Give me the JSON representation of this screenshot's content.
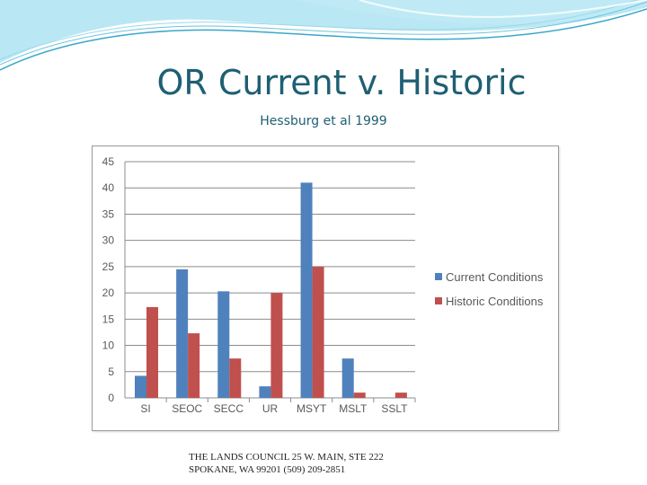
{
  "slide": {
    "title": "OR Current v. Historic",
    "subtitle": "Hessburg et al 1999",
    "footer_line1": "THE LANDS COUNCIL 25 W. MAIN, STE 222",
    "footer_line2": "SPOKANE, WA 99201 (509) 209-2851"
  },
  "colors": {
    "title": "#1f5f73",
    "current": "#4f81bd",
    "historic": "#c0504d",
    "wave": "#5bc0de"
  },
  "chart_data": {
    "type": "bar",
    "categories": [
      "SI",
      "SEOC",
      "SECC",
      "UR",
      "MSYT",
      "MSLT",
      "SSLT"
    ],
    "series": [
      {
        "name": "Current Conditions",
        "values": [
          4.2,
          24.5,
          20.3,
          2.2,
          41,
          7.5,
          0
        ]
      },
      {
        "name": "Historic Conditions",
        "values": [
          17.3,
          12.3,
          7.5,
          20,
          25,
          1,
          1
        ]
      }
    ],
    "yticks": [
      "0",
      "5",
      "10",
      "15",
      "20",
      "25",
      "30",
      "35",
      "40",
      "45"
    ],
    "ylim": [
      0,
      45
    ],
    "grid": true,
    "legend_position": "right"
  }
}
